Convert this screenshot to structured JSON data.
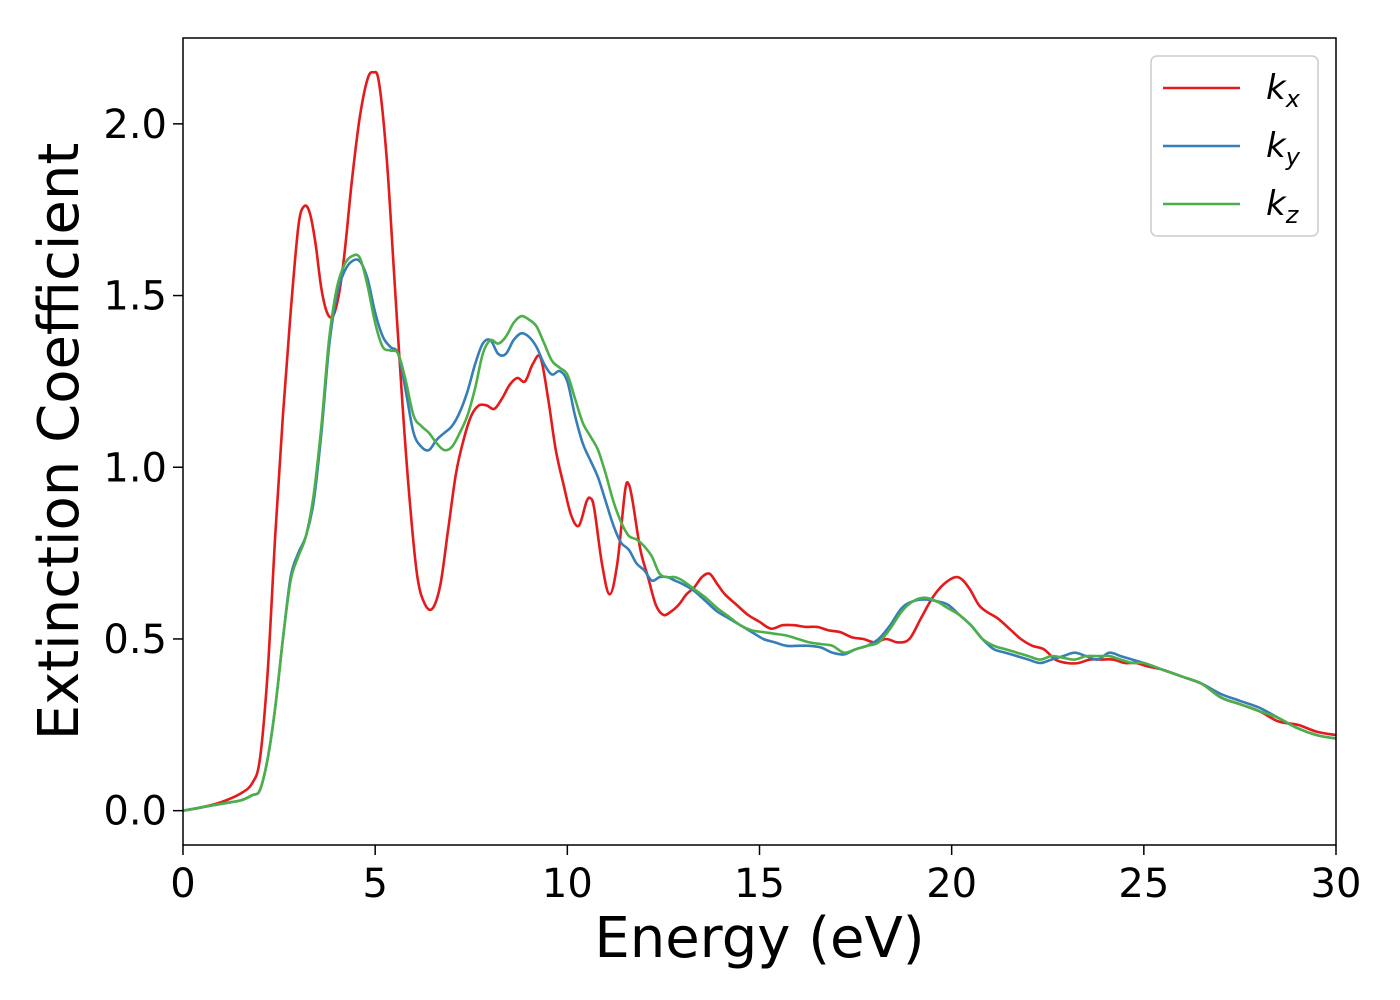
{
  "chart_data": {
    "type": "line",
    "xlabel": "Energy (eV)",
    "ylabel": "Extinction Coefficient",
    "xlim": [
      0,
      30
    ],
    "ylim": [
      -0.1,
      2.25
    ],
    "xticks": [
      "0",
      "5",
      "10",
      "15",
      "20",
      "25",
      "30"
    ],
    "yticks": [
      "0.0",
      "0.5",
      "1.0",
      "1.5",
      "2.0"
    ],
    "grid": false,
    "legend_position": "top-right",
    "series": [
      {
        "name": "k",
        "subscript": "x",
        "color": "#e41a1c",
        "x": [
          0,
          0.5,
          1,
          1.5,
          1.8,
          2,
          2.2,
          2.4,
          2.6,
          2.8,
          3,
          3.15,
          3.3,
          3.45,
          3.6,
          3.75,
          3.9,
          4.05,
          4.2,
          4.4,
          4.6,
          4.8,
          4.95,
          5.1,
          5.3,
          5.5,
          5.7,
          5.9,
          6.1,
          6.3,
          6.5,
          6.7,
          6.9,
          7.1,
          7.3,
          7.5,
          7.7,
          7.9,
          8.1,
          8.3,
          8.5,
          8.7,
          8.9,
          9.1,
          9.3,
          9.5,
          9.7,
          9.9,
          10.1,
          10.3,
          10.5,
          10.6,
          10.7,
          10.9,
          11.1,
          11.3,
          11.5,
          11.6,
          11.7,
          11.9,
          12.1,
          12.3,
          12.5,
          12.7,
          12.9,
          13.1,
          13.3,
          13.5,
          13.7,
          13.9,
          14.1,
          14.4,
          14.7,
          15,
          15.3,
          15.6,
          15.9,
          16.2,
          16.5,
          16.8,
          17.1,
          17.4,
          17.7,
          18,
          18.3,
          18.6,
          18.9,
          19.2,
          19.5,
          19.8,
          20.1,
          20.3,
          20.5,
          20.7,
          20.9,
          21.2,
          21.5,
          21.8,
          22.1,
          22.4,
          22.7,
          23,
          23.3,
          23.6,
          23.9,
          24.2,
          24.5,
          24.8,
          25.1,
          25.5,
          26,
          26.5,
          27,
          27.5,
          28,
          28.5,
          29,
          29.5,
          30
        ],
        "y": [
          0,
          0.01,
          0.025,
          0.05,
          0.08,
          0.15,
          0.4,
          0.8,
          1.15,
          1.45,
          1.7,
          1.76,
          1.74,
          1.65,
          1.52,
          1.45,
          1.44,
          1.5,
          1.62,
          1.84,
          2.02,
          2.13,
          2.15,
          2.12,
          1.9,
          1.55,
          1.2,
          0.9,
          0.68,
          0.6,
          0.59,
          0.66,
          0.82,
          0.98,
          1.08,
          1.15,
          1.18,
          1.18,
          1.17,
          1.2,
          1.24,
          1.26,
          1.25,
          1.3,
          1.32,
          1.2,
          1.05,
          0.95,
          0.86,
          0.83,
          0.9,
          0.91,
          0.88,
          0.72,
          0.63,
          0.72,
          0.93,
          0.95,
          0.9,
          0.76,
          0.68,
          0.6,
          0.57,
          0.58,
          0.6,
          0.63,
          0.65,
          0.68,
          0.69,
          0.66,
          0.63,
          0.6,
          0.57,
          0.55,
          0.53,
          0.54,
          0.54,
          0.535,
          0.535,
          0.525,
          0.52,
          0.505,
          0.5,
          0.49,
          0.5,
          0.49,
          0.5,
          0.56,
          0.62,
          0.66,
          0.68,
          0.67,
          0.64,
          0.6,
          0.58,
          0.56,
          0.53,
          0.5,
          0.48,
          0.47,
          0.44,
          0.43,
          0.43,
          0.44,
          0.44,
          0.44,
          0.43,
          0.43,
          0.42,
          0.41,
          0.39,
          0.37,
          0.33,
          0.31,
          0.29,
          0.26,
          0.25,
          0.23,
          0.22
        ]
      },
      {
        "name": "k",
        "subscript": "y",
        "color": "#377eb8",
        "x": [
          0,
          0.5,
          1,
          1.5,
          1.8,
          2,
          2.2,
          2.4,
          2.6,
          2.8,
          3,
          3.2,
          3.4,
          3.6,
          3.8,
          4,
          4.2,
          4.4,
          4.6,
          4.8,
          5,
          5.2,
          5.4,
          5.6,
          5.8,
          6,
          6.2,
          6.4,
          6.6,
          6.8,
          7,
          7.2,
          7.4,
          7.6,
          7.8,
          8,
          8.2,
          8.4,
          8.6,
          8.8,
          9,
          9.2,
          9.4,
          9.6,
          9.8,
          10,
          10.2,
          10.4,
          10.6,
          10.8,
          11,
          11.2,
          11.4,
          11.6,
          11.8,
          12,
          12.2,
          12.4,
          12.6,
          12.8,
          13,
          13.3,
          13.6,
          13.9,
          14.2,
          14.5,
          14.8,
          15.1,
          15.4,
          15.7,
          16,
          16.3,
          16.6,
          16.9,
          17.2,
          17.5,
          17.8,
          18.1,
          18.4,
          18.7,
          19,
          19.3,
          19.6,
          19.9,
          20.2,
          20.5,
          20.8,
          21.1,
          21.4,
          21.7,
          22,
          22.3,
          22.6,
          22.9,
          23.2,
          23.5,
          23.8,
          24.1,
          24.4,
          24.7,
          25,
          25.5,
          26,
          26.5,
          27,
          27.5,
          28,
          28.5,
          29,
          29.5,
          30
        ],
        "y": [
          0,
          0.01,
          0.02,
          0.03,
          0.045,
          0.06,
          0.15,
          0.3,
          0.5,
          0.68,
          0.75,
          0.8,
          0.9,
          1.1,
          1.35,
          1.5,
          1.57,
          1.6,
          1.6,
          1.55,
          1.45,
          1.38,
          1.35,
          1.33,
          1.22,
          1.1,
          1.06,
          1.05,
          1.08,
          1.1,
          1.12,
          1.16,
          1.22,
          1.3,
          1.36,
          1.37,
          1.33,
          1.33,
          1.37,
          1.39,
          1.38,
          1.35,
          1.3,
          1.27,
          1.28,
          1.25,
          1.15,
          1.07,
          1.02,
          0.97,
          0.9,
          0.83,
          0.78,
          0.76,
          0.72,
          0.7,
          0.67,
          0.68,
          0.68,
          0.67,
          0.66,
          0.64,
          0.61,
          0.58,
          0.56,
          0.54,
          0.52,
          0.5,
          0.49,
          0.48,
          0.48,
          0.48,
          0.475,
          0.46,
          0.455,
          0.47,
          0.48,
          0.5,
          0.54,
          0.59,
          0.61,
          0.615,
          0.61,
          0.6,
          0.57,
          0.54,
          0.5,
          0.47,
          0.46,
          0.45,
          0.44,
          0.43,
          0.44,
          0.45,
          0.46,
          0.45,
          0.44,
          0.46,
          0.45,
          0.44,
          0.43,
          0.41,
          0.39,
          0.37,
          0.34,
          0.32,
          0.3,
          0.27,
          0.24,
          0.22,
          0.21
        ]
      },
      {
        "name": "k",
        "subscript": "z",
        "color": "#4daf4a",
        "x": [
          0,
          0.5,
          1,
          1.5,
          1.8,
          2,
          2.2,
          2.4,
          2.6,
          2.8,
          3,
          3.2,
          3.4,
          3.6,
          3.8,
          4,
          4.2,
          4.4,
          4.6,
          4.8,
          5,
          5.2,
          5.4,
          5.6,
          5.8,
          6,
          6.2,
          6.4,
          6.6,
          6.8,
          7,
          7.2,
          7.4,
          7.6,
          7.8,
          8,
          8.2,
          8.4,
          8.6,
          8.8,
          9,
          9.2,
          9.4,
          9.6,
          9.8,
          10,
          10.2,
          10.4,
          10.6,
          10.8,
          11,
          11.2,
          11.4,
          11.6,
          11.8,
          12,
          12.2,
          12.4,
          12.6,
          12.8,
          13,
          13.3,
          13.6,
          13.9,
          14.2,
          14.5,
          14.8,
          15.1,
          15.4,
          15.7,
          16,
          16.3,
          16.6,
          16.9,
          17.2,
          17.5,
          17.8,
          18.1,
          18.4,
          18.7,
          19,
          19.3,
          19.6,
          19.9,
          20.2,
          20.5,
          20.8,
          21.1,
          21.4,
          21.7,
          22,
          22.3,
          22.6,
          22.9,
          23.2,
          23.5,
          23.8,
          24.1,
          24.4,
          24.7,
          25,
          25.5,
          26,
          26.5,
          27,
          27.5,
          28,
          28.5,
          29,
          29.5,
          30
        ],
        "y": [
          0,
          0.01,
          0.02,
          0.03,
          0.045,
          0.06,
          0.15,
          0.3,
          0.5,
          0.67,
          0.74,
          0.8,
          0.92,
          1.12,
          1.37,
          1.52,
          1.59,
          1.615,
          1.61,
          1.53,
          1.42,
          1.35,
          1.34,
          1.33,
          1.25,
          1.15,
          1.12,
          1.1,
          1.07,
          1.05,
          1.06,
          1.1,
          1.15,
          1.23,
          1.33,
          1.37,
          1.36,
          1.38,
          1.42,
          1.44,
          1.43,
          1.41,
          1.36,
          1.31,
          1.29,
          1.27,
          1.2,
          1.13,
          1.09,
          1.05,
          0.98,
          0.9,
          0.84,
          0.8,
          0.79,
          0.77,
          0.74,
          0.69,
          0.68,
          0.68,
          0.67,
          0.645,
          0.62,
          0.59,
          0.565,
          0.54,
          0.525,
          0.52,
          0.515,
          0.51,
          0.5,
          0.49,
          0.485,
          0.48,
          0.46,
          0.47,
          0.48,
          0.49,
          0.53,
          0.58,
          0.61,
          0.62,
          0.61,
          0.59,
          0.57,
          0.54,
          0.5,
          0.48,
          0.47,
          0.46,
          0.45,
          0.44,
          0.45,
          0.445,
          0.44,
          0.45,
          0.45,
          0.45,
          0.44,
          0.43,
          0.43,
          0.41,
          0.39,
          0.37,
          0.33,
          0.31,
          0.29,
          0.27,
          0.24,
          0.22,
          0.21
        ]
      }
    ]
  }
}
